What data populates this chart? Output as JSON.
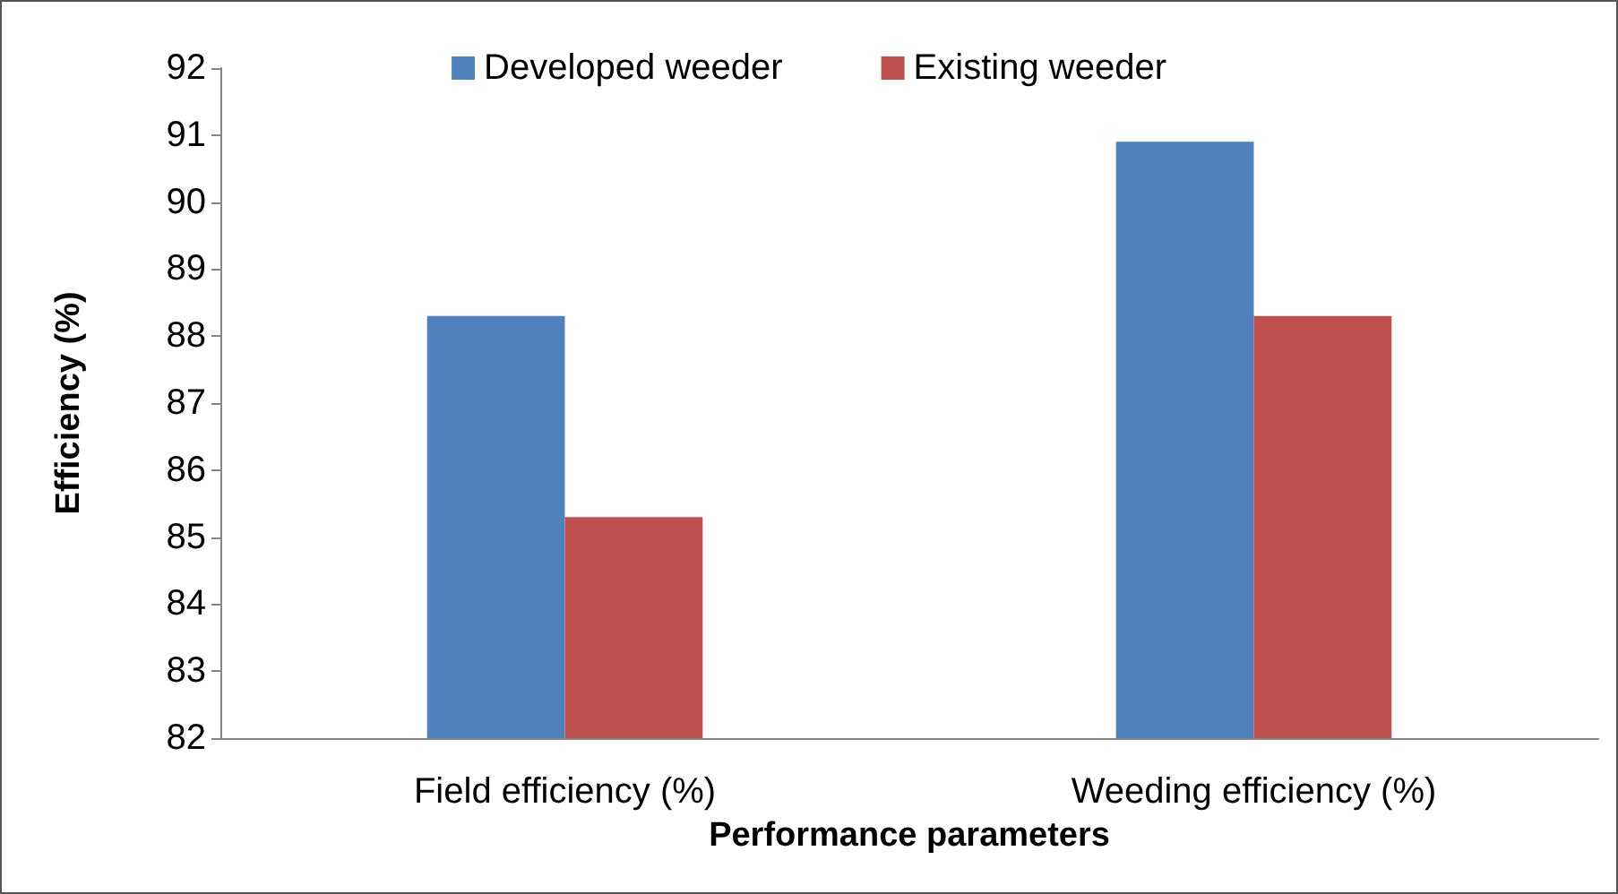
{
  "chart_data": {
    "type": "bar",
    "xlabel": "Performance parameters",
    "ylabel": "Efficiency (%)",
    "categories": [
      "Field efficiency (%)",
      "Weeding efficiency (%)"
    ],
    "series": [
      {
        "name": "Developed weeder",
        "color": "#4f81bd",
        "values": [
          88.3,
          90.9
        ]
      },
      {
        "name": "Existing weeder",
        "color": "#c0504d",
        "values": [
          85.3,
          88.3
        ]
      }
    ],
    "ylim": [
      82,
      92
    ],
    "yticks": [
      82,
      83,
      84,
      85,
      86,
      87,
      88,
      89,
      90,
      91,
      92
    ],
    "grid": false,
    "legend": "top"
  }
}
